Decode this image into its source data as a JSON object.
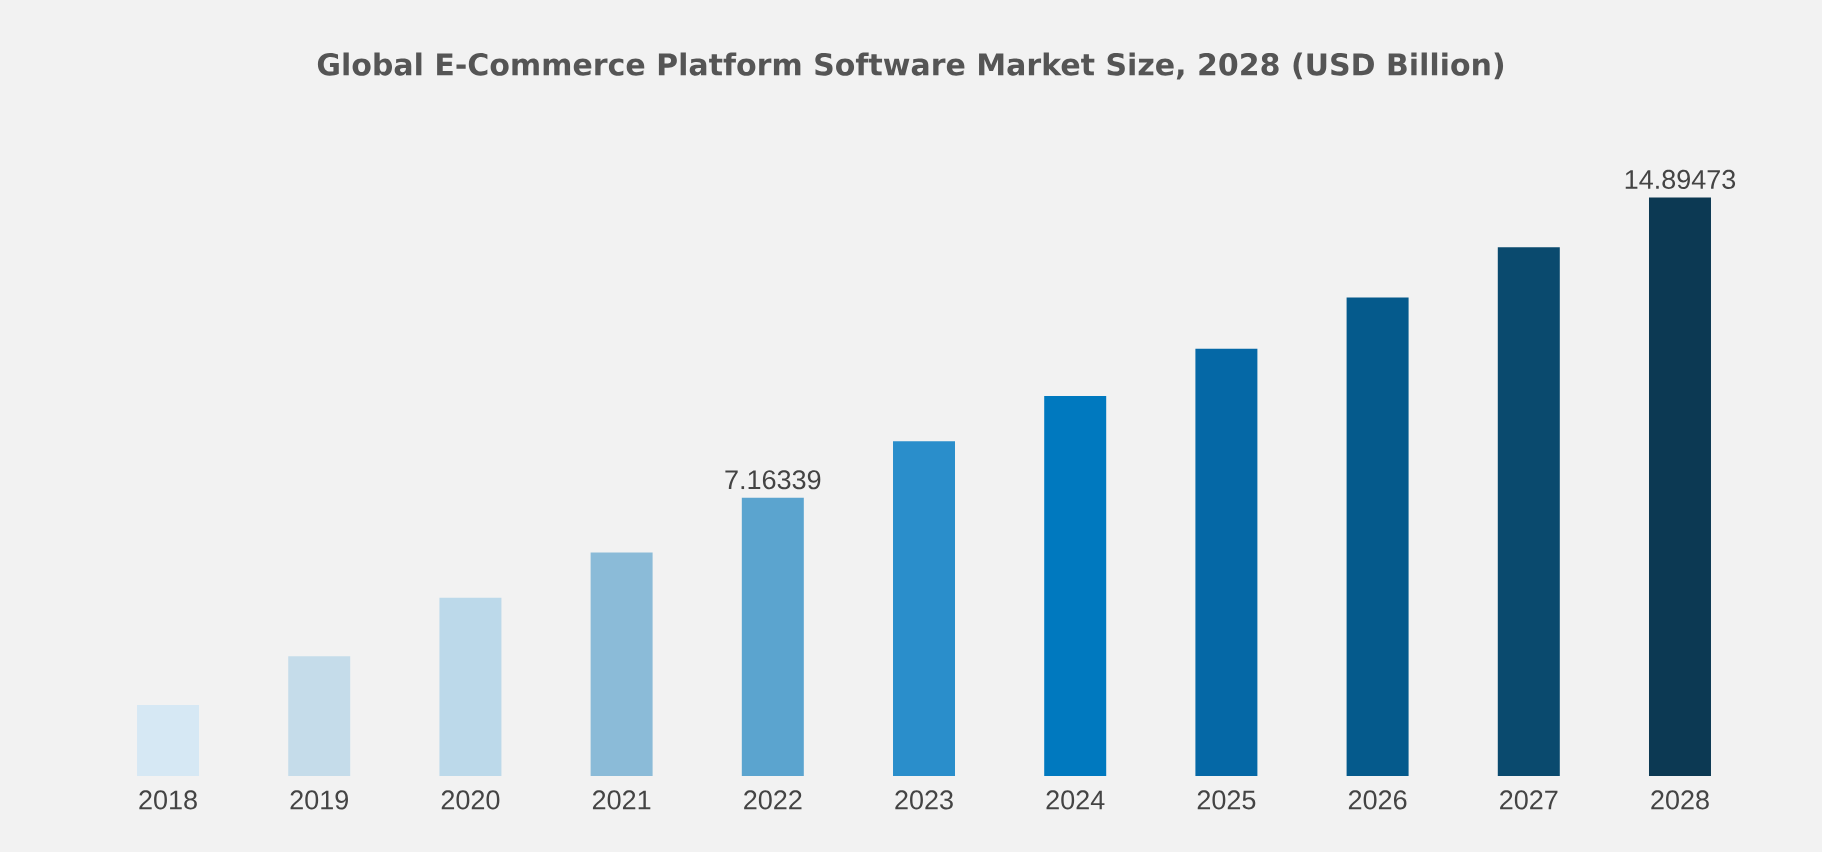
{
  "chart_data": {
    "type": "bar",
    "title": "Global E-Commerce Platform Software Market Size, 2028 (USD Billion)",
    "categories": [
      "2018",
      "2019",
      "2020",
      "2021",
      "2022",
      "2023",
      "2024",
      "2025",
      "2026",
      "2027",
      "2028"
    ],
    "values": [
      1.83,
      3.08,
      4.59,
      5.75,
      7.16339,
      8.62,
      9.78,
      11.0,
      12.32,
      13.61,
      14.89473
    ],
    "value_labels": [
      null,
      null,
      null,
      null,
      "7.16339",
      null,
      null,
      null,
      null,
      null,
      "14.89473"
    ],
    "colors": [
      "#d6e8f4",
      "#c5dcea",
      "#bcd9ea",
      "#8bbbd8",
      "#5ba4cf",
      "#2a8ecb",
      "#0079bf",
      "#0568a6",
      "#055a8c",
      "#0a4a6e",
      "#0c3953"
    ]
  }
}
